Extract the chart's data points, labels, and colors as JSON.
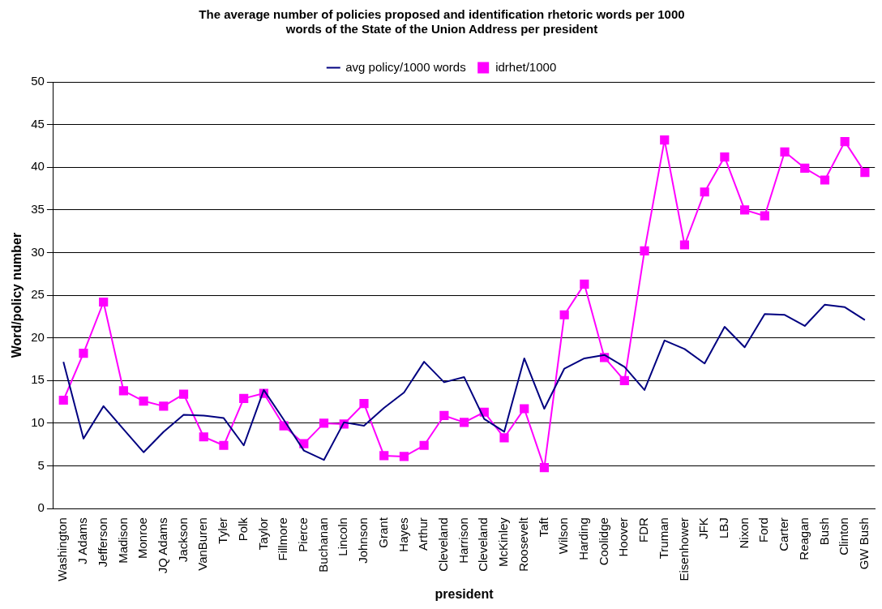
{
  "chart_data": {
    "type": "line",
    "title": "The average number of policies proposed and identification rhetoric words per 1000 words of the State of the Union Address per president",
    "xlabel": "president",
    "ylabel": "Word/policy number",
    "categories": [
      "Washington",
      "J Adams",
      "Jefferson",
      "Madison",
      "Monroe",
      "JQ Adams",
      "Jackson",
      "VanBuren",
      "Tyler",
      "Polk",
      "Taylor",
      "Fillmore",
      "Pierce",
      "Buchanan",
      "Lincoln",
      "Johnson",
      "Grant",
      "Hayes",
      "Arthur",
      "Cleveland",
      "Harrison",
      "Cleveland",
      "McKinley",
      "Roosevelt",
      "Taft",
      "Wilson",
      "Harding",
      "Coolidge",
      "Hoover",
      "FDR",
      "Truman",
      "Eisenhower",
      "JFK",
      "LBJ",
      "Nixon",
      "Ford",
      "Carter",
      "Reagan",
      "Bush",
      "Clinton",
      "GW Bush"
    ],
    "series": [
      {
        "name": "avg policy/1000 words",
        "color": "#000080",
        "marker": "none",
        "values": [
          17.2,
          8.2,
          12.0,
          9.3,
          6.6,
          9.0,
          11.0,
          10.9,
          10.6,
          7.4,
          13.9,
          10.4,
          6.8,
          5.7,
          10.1,
          9.7,
          11.8,
          13.6,
          17.2,
          14.8,
          15.4,
          10.5,
          9.0,
          17.6,
          11.7,
          16.4,
          17.6,
          18.0,
          16.6,
          13.9,
          19.7,
          18.7,
          17.0,
          21.3,
          18.9,
          22.8,
          22.7,
          21.4,
          23.9,
          23.6,
          22.1
        ]
      },
      {
        "name": "idrhet/1000",
        "color": "#ff00ff",
        "marker": "square",
        "values": [
          12.7,
          18.2,
          24.2,
          13.8,
          12.6,
          12.0,
          13.4,
          8.4,
          7.4,
          12.9,
          13.5,
          9.7,
          7.6,
          10.0,
          9.9,
          12.3,
          6.2,
          6.1,
          7.4,
          10.9,
          10.1,
          11.3,
          8.3,
          11.7,
          4.8,
          22.7,
          26.3,
          17.7,
          15.0,
          30.2,
          43.2,
          30.9,
          37.1,
          41.2,
          35.0,
          34.3,
          41.8,
          39.9,
          38.5,
          43.0,
          39.4
        ]
      }
    ],
    "ylim": [
      0,
      50
    ],
    "yticks": [
      0,
      5,
      10,
      15,
      20,
      25,
      30,
      35,
      40,
      45,
      50
    ],
    "grid": "y",
    "legend": "top",
    "line_style": "solid"
  }
}
